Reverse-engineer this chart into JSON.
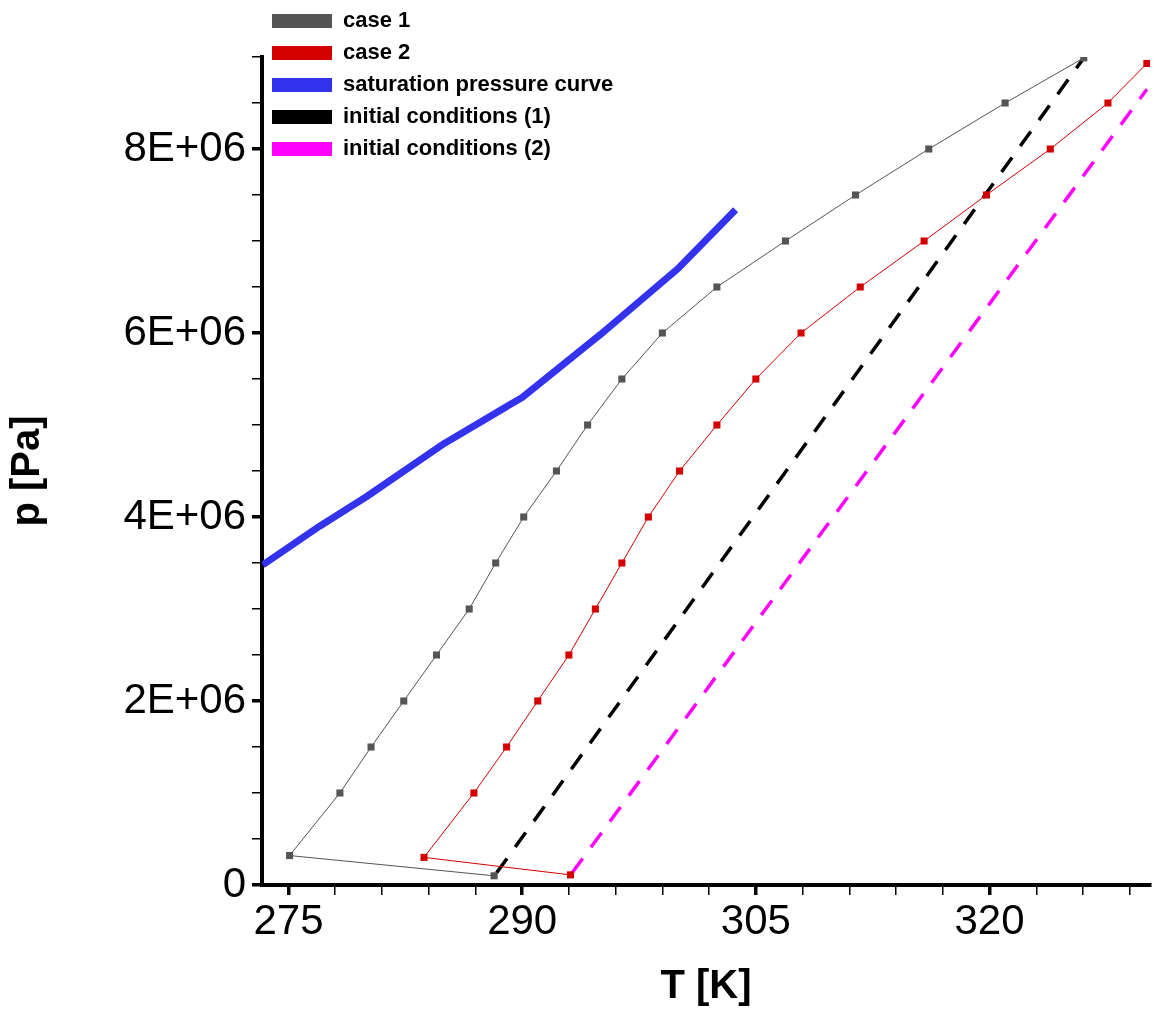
{
  "chart_data": {
    "type": "line",
    "xlabel": "T [K]",
    "ylabel": "p [Pa]",
    "xlim": [
      273.3,
      330.3
    ],
    "xticks": [
      275,
      {
        "value": 278,
        "label": null
      },
      {
        "value": 281,
        "label": null
      },
      {
        "value": 284,
        "label": null
      },
      {
        "value": 287,
        "label": null
      },
      290,
      {
        "value": 293,
        "label": null
      },
      {
        "value": 296,
        "label": null
      },
      {
        "value": 299,
        "label": null
      },
      {
        "value": 302,
        "label": null
      },
      305,
      {
        "value": 308,
        "label": null
      },
      {
        "value": 311,
        "label": null
      },
      {
        "value": 314,
        "label": null
      },
      {
        "value": 317,
        "label": null
      },
      320,
      {
        "value": 323,
        "label": null
      },
      {
        "value": 326,
        "label": null
      },
      {
        "value": 329,
        "label": null
      }
    ],
    "ylim": [
      0,
      9000000
    ],
    "yticks": [
      {
        "value": 0,
        "label": "0"
      },
      {
        "value": 500000,
        "label": null
      },
      {
        "value": 1000000,
        "label": null
      },
      {
        "value": 1500000,
        "label": null
      },
      {
        "value": 2000000,
        "label": "2E+06"
      },
      {
        "value": 2500000,
        "label": null
      },
      {
        "value": 3000000,
        "label": null
      },
      {
        "value": 3500000,
        "label": null
      },
      {
        "value": 4000000,
        "label": "4E+06"
      },
      {
        "value": 4500000,
        "label": null
      },
      {
        "value": 5000000,
        "label": null
      },
      {
        "value": 5500000,
        "label": null
      },
      {
        "value": 6000000,
        "label": "6E+06"
      },
      {
        "value": 6500000,
        "label": null
      },
      {
        "value": 7000000,
        "label": null
      },
      {
        "value": 7500000,
        "label": null
      },
      {
        "value": 8000000,
        "label": "8E+06"
      },
      {
        "value": 8500000,
        "label": null
      },
      {
        "value": 9000000,
        "label": null
      }
    ],
    "grid": false,
    "legend": "top",
    "series": [
      {
        "name": "case 1",
        "color": "#555555",
        "marker": "square",
        "line_style": "solid",
        "x": [
          288.2,
          275.07,
          278.3,
          280.3,
          282.4,
          284.5,
          286.6,
          288.3,
          290.1,
          292.2,
          294.2,
          296.4,
          299.0,
          302.5,
          306.9,
          311.4,
          316.1,
          321.0,
          326.05
        ],
        "values": [
          100000,
          320000,
          1000000,
          1500000,
          2000000,
          2500000,
          3000000,
          3500000,
          4000000,
          4500000,
          5000000,
          5500000,
          6000000,
          6500000,
          7000000,
          7500000,
          8000000,
          8500000,
          8990000
        ]
      },
      {
        "name": "case 2",
        "color": "#d40000",
        "marker": "square",
        "line_style": "solid",
        "x": [
          293.1,
          283.7,
          286.9,
          289.0,
          291.0,
          293.0,
          294.7,
          296.4,
          298.1,
          300.1,
          302.5,
          305.0,
          307.9,
          311.7,
          315.8,
          319.8,
          323.9,
          327.6,
          330.1
        ],
        "values": [
          110000,
          300000,
          1000000,
          1500000,
          2000000,
          2500000,
          3000000,
          3500000,
          4000000,
          4500000,
          5000000,
          5500000,
          6000000,
          6500000,
          7000000,
          7500000,
          8000000,
          8500000,
          8930000
        ]
      },
      {
        "name": "saturation pressure curve",
        "color": "#3333ee",
        "marker": "none",
        "line_style": "solid",
        "x": [
          273.35,
          277,
          280,
          285,
          290,
          295,
          300,
          303.7
        ],
        "values": [
          3480000,
          3900000,
          4220000,
          4800000,
          5300000,
          5980000,
          6700000,
          7340000
        ]
      },
      {
        "name": "initial conditions (1)",
        "color": "#000000",
        "marker": "none",
        "line_style": "dashed",
        "x": [
          288.35,
          326.05
        ],
        "values": [
          130000,
          8990000
        ]
      },
      {
        "name": "initial conditions (2)",
        "color": "#ff00ff",
        "marker": "none",
        "line_style": "dashed",
        "x": [
          293.2,
          330.1
        ],
        "values": [
          130000,
          8650000
        ]
      }
    ]
  }
}
